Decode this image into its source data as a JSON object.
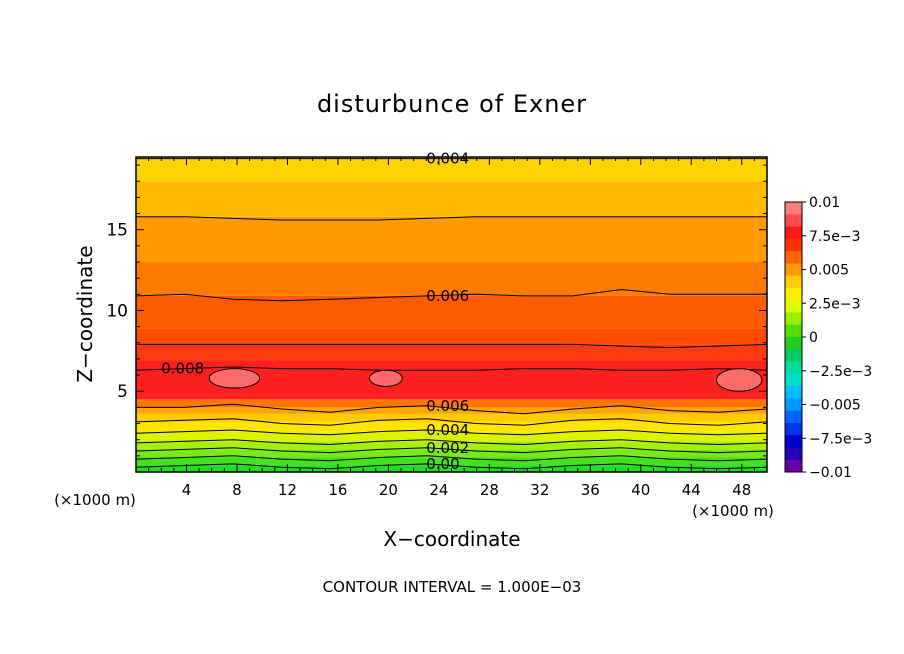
{
  "chart_data": {
    "type": "heatmap",
    "title": "disturbunce of Exner",
    "xlabel": "X−coordinate",
    "ylabel": "Z−coordinate",
    "x_unit": "(×1000 m)",
    "footer": "CONTOUR INTERVAL = 1.000E−03",
    "xlim": [
      0,
      50
    ],
    "ylim": [
      0,
      19.5
    ],
    "x_ticks": [
      4,
      8,
      12,
      16,
      20,
      24,
      28,
      32,
      36,
      40,
      44,
      48
    ],
    "y_ticks": [
      5,
      10,
      15
    ],
    "contour_interval": 0.001,
    "color_range": [
      -0.01,
      0.01
    ],
    "colorbar": {
      "labels": [
        "0.01",
        "7.5e−3",
        "0.005",
        "2.5e−3",
        "0",
        "−2.5e−3",
        "−0.005",
        "−7.5e−3",
        "−0.01"
      ],
      "colors": [
        "#ff7f7f",
        "#ff4c4c",
        "#ff1a1a",
        "#ff3300",
        "#ff6600",
        "#ff9900",
        "#ffcc00",
        "#ffee00",
        "#ddff00",
        "#99ee00",
        "#55dd00",
        "#22cc22",
        "#00cc66",
        "#00dd99",
        "#00ddcc",
        "#00bbff",
        "#0099ff",
        "#0066ff",
        "#0033ee",
        "#0000cc",
        "#2200bb",
        "#6600aa"
      ]
    },
    "levels": [
      {
        "value": 0.0,
        "label": "0.00",
        "z": [
          0.3,
          0.4,
          0.5,
          0.3,
          0.2,
          0.4,
          0.5,
          0.3,
          0.2,
          0.4,
          0.5,
          0.3,
          0.2,
          0.3
        ]
      },
      {
        "value": 0.001,
        "label": "",
        "z": [
          0.8,
          0.9,
          1.0,
          0.8,
          0.7,
          0.9,
          1.0,
          0.8,
          0.7,
          0.9,
          1.0,
          0.8,
          0.7,
          0.8
        ]
      },
      {
        "value": 0.002,
        "label": "0.002",
        "z": [
          1.3,
          1.4,
          1.5,
          1.3,
          1.2,
          1.4,
          1.5,
          1.3,
          1.2,
          1.4,
          1.5,
          1.3,
          1.2,
          1.3
        ]
      },
      {
        "value": 0.003,
        "label": "",
        "z": [
          1.8,
          1.9,
          2.0,
          1.8,
          1.7,
          1.9,
          2.0,
          1.8,
          1.7,
          1.9,
          2.0,
          1.8,
          1.7,
          1.8
        ]
      },
      {
        "value": 0.004,
        "label": "0.004",
        "z": [
          2.4,
          2.5,
          2.6,
          2.4,
          2.3,
          2.5,
          2.6,
          2.4,
          2.3,
          2.5,
          2.6,
          2.4,
          2.3,
          2.4
        ]
      },
      {
        "value": 0.005,
        "label": "",
        "z": [
          3.1,
          3.2,
          3.3,
          3.0,
          2.9,
          3.2,
          3.3,
          3.0,
          2.9,
          3.2,
          3.3,
          3.0,
          2.9,
          3.1
        ]
      },
      {
        "value": 0.006,
        "label": "0.006",
        "z": [
          4.0,
          4.0,
          4.2,
          3.9,
          3.7,
          4.0,
          4.1,
          3.8,
          3.6,
          3.9,
          4.1,
          3.8,
          3.7,
          3.9
        ]
      },
      {
        "value": 0.008,
        "label": "0.008",
        "z": [
          6.3,
          6.4,
          6.5,
          6.4,
          6.4,
          6.3,
          6.3,
          6.3,
          6.4,
          6.4,
          6.3,
          6.3,
          6.4,
          6.3
        ]
      },
      {
        "value": 0.007,
        "label": "",
        "z": [
          7.9,
          7.9,
          7.9,
          7.9,
          7.9,
          7.9,
          7.9,
          7.9,
          7.9,
          7.9,
          7.8,
          7.7,
          7.8,
          7.9
        ]
      },
      {
        "value": 0.006,
        "label": "0.006",
        "z": [
          10.9,
          11.0,
          10.7,
          10.6,
          10.7,
          10.8,
          10.9,
          11.0,
          10.9,
          10.9,
          11.3,
          11.0,
          11.0,
          11.0
        ]
      },
      {
        "value": 0.005,
        "label": "",
        "z": [
          15.8,
          15.8,
          15.7,
          15.6,
          15.6,
          15.6,
          15.7,
          15.8,
          15.8,
          15.8,
          15.8,
          15.8,
          15.8,
          15.8
        ]
      },
      {
        "value": 0.004,
        "label": "0.004",
        "z": [
          19.4,
          19.4,
          19.4,
          19.4,
          19.4,
          19.4,
          19.4,
          19.4,
          19.4,
          19.4,
          19.4,
          19.4,
          19.4,
          19.4
        ]
      }
    ],
    "closed_contours": [
      {
        "value": 0.008,
        "x": 7.8,
        "z": 5.8,
        "rx": 2.0,
        "rz": 0.6
      },
      {
        "value": 0.008,
        "x": 19.8,
        "z": 5.8,
        "rx": 1.3,
        "rz": 0.5
      },
      {
        "value": 0.008,
        "x": 47.8,
        "z": 5.7,
        "rx": 1.8,
        "rz": 0.7
      }
    ],
    "bands": [
      {
        "z0": 0.0,
        "z1": 0.4,
        "color": "#22dd22"
      },
      {
        "z0": 0.4,
        "z1": 0.9,
        "color": "#44e022"
      },
      {
        "z0": 0.9,
        "z1": 1.4,
        "color": "#77e81a"
      },
      {
        "z0": 1.4,
        "z1": 1.9,
        "color": "#aaee10"
      },
      {
        "z0": 1.9,
        "z1": 2.5,
        "color": "#ddf200"
      },
      {
        "z0": 2.5,
        "z1": 3.1,
        "color": "#ffe600"
      },
      {
        "z0": 3.1,
        "z1": 3.6,
        "color": "#ffcc00"
      },
      {
        "z0": 3.6,
        "z1": 4.0,
        "color": "#ffa500"
      },
      {
        "z0": 4.0,
        "z1": 4.5,
        "color": "#ff7700"
      },
      {
        "z0": 4.5,
        "z1": 6.9,
        "color": "#ff2020"
      },
      {
        "z0": 6.9,
        "z1": 7.9,
        "color": "#ff3a10"
      },
      {
        "z0": 7.9,
        "z1": 8.9,
        "color": "#ff4b00"
      },
      {
        "z0": 8.9,
        "z1": 10.9,
        "color": "#ff5c00"
      },
      {
        "z0": 10.9,
        "z1": 13.0,
        "color": "#ff7b00"
      },
      {
        "z0": 13.0,
        "z1": 15.8,
        "color": "#ff9b00"
      },
      {
        "z0": 15.8,
        "z1": 18.0,
        "color": "#ffbb00"
      },
      {
        "z0": 18.0,
        "z1": 19.5,
        "color": "#ffd400"
      }
    ]
  }
}
